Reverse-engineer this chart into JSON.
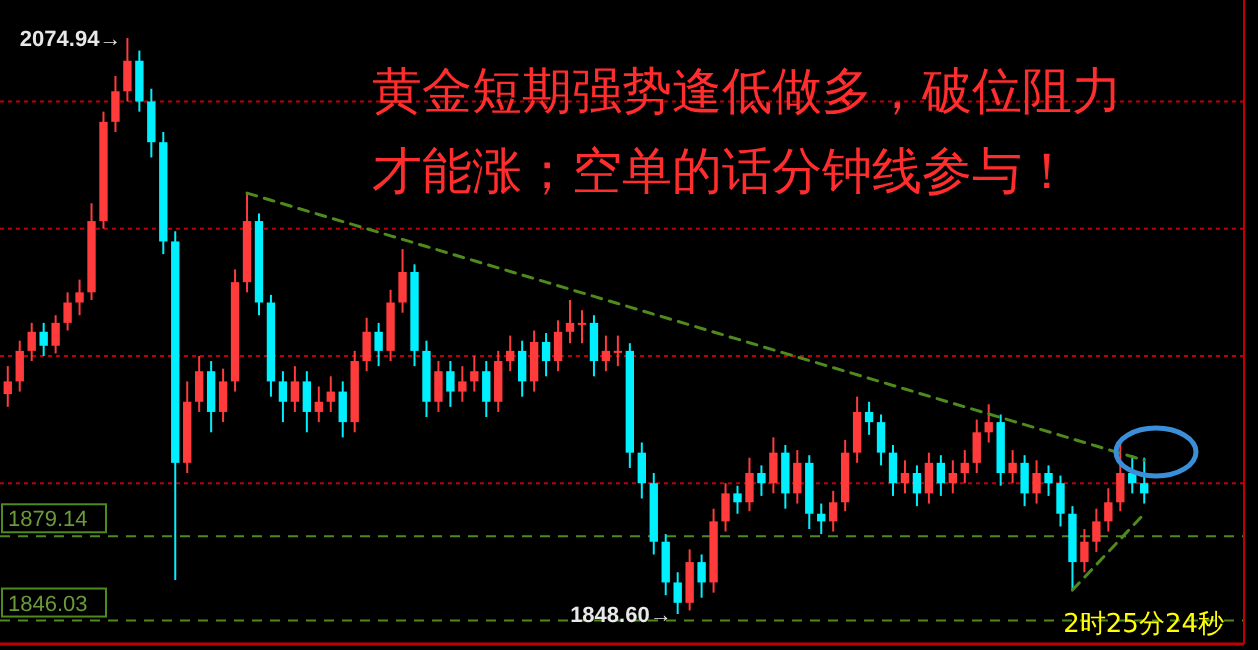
{
  "chart_data": {
    "type": "candlestick",
    "categories": [
      null,
      null,
      null,
      null,
      null,
      null,
      null,
      null,
      null,
      null,
      null,
      null,
      null,
      null,
      null,
      null,
      null,
      null,
      null,
      null,
      null,
      null,
      null,
      null,
      null,
      null,
      null,
      null,
      null,
      null,
      null,
      null,
      null,
      null,
      null,
      null,
      null,
      null,
      null,
      null,
      null,
      null,
      null,
      null,
      null,
      null,
      null,
      null,
      null,
      null,
      null,
      null,
      null,
      null,
      null,
      null,
      null,
      null,
      null,
      null,
      null,
      null,
      null,
      null,
      null,
      null,
      null,
      null,
      null,
      null,
      null,
      null,
      null,
      null,
      null,
      null,
      null,
      null,
      null,
      null,
      null,
      null,
      null,
      null,
      null,
      null,
      null,
      null,
      null,
      null,
      null,
      null,
      null,
      null,
      null,
      null
    ],
    "ohlc": [
      [
        1935,
        1946,
        1930,
        1940
      ],
      [
        1940,
        1956,
        1936,
        1952
      ],
      [
        1952,
        1963,
        1948,
        1959.5
      ],
      [
        1959.5,
        1963,
        1950,
        1954
      ],
      [
        1954,
        1966,
        1951,
        1963
      ],
      [
        1963,
        1975,
        1960,
        1971
      ],
      [
        1971,
        1980,
        1966,
        1975
      ],
      [
        1975,
        2010,
        1972,
        2003
      ],
      [
        2003,
        2046,
        2000,
        2042
      ],
      [
        2042,
        2060,
        2038,
        2054
      ],
      [
        2054,
        2074.94,
        2050,
        2066
      ],
      [
        2066,
        2070,
        2046,
        2050
      ],
      [
        2050,
        2055,
        2028,
        2034
      ],
      [
        2034,
        2038,
        1990,
        1995
      ],
      [
        1995,
        1999,
        1862,
        1908
      ],
      [
        1908,
        1940,
        1904,
        1932
      ],
      [
        1932,
        1950,
        1928,
        1944
      ],
      [
        1944,
        1948,
        1920,
        1928
      ],
      [
        1928,
        1945,
        1924,
        1940
      ],
      [
        1940,
        1984,
        1936,
        1979
      ],
      [
        1979,
        2014,
        1975,
        2003
      ],
      [
        2003,
        2006,
        1966,
        1971
      ],
      [
        1971,
        1974,
        1934,
        1940
      ],
      [
        1940,
        1944,
        1924,
        1932
      ],
      [
        1932,
        1946,
        1928,
        1940
      ],
      [
        1940,
        1944,
        1920,
        1928
      ],
      [
        1928,
        1938,
        1924,
        1932
      ],
      [
        1932,
        1942,
        1928,
        1936
      ],
      [
        1936,
        1940,
        1918,
        1924
      ],
      [
        1924,
        1952,
        1920,
        1948
      ],
      [
        1948,
        1965,
        1944,
        1959.5
      ],
      [
        1959.5,
        1963,
        1946,
        1952
      ],
      [
        1952,
        1976,
        1948,
        1971
      ],
      [
        1971,
        1992,
        1967,
        1983
      ],
      [
        1983,
        1986,
        1946,
        1952
      ],
      [
        1952,
        1956,
        1926,
        1932
      ],
      [
        1932,
        1948,
        1928,
        1944
      ],
      [
        1944,
        1948,
        1930,
        1936
      ],
      [
        1936,
        1946,
        1932,
        1940
      ],
      [
        1940,
        1950,
        1936,
        1944
      ],
      [
        1944,
        1948,
        1926,
        1932
      ],
      [
        1932,
        1952,
        1928,
        1948
      ],
      [
        1948,
        1958,
        1944,
        1952
      ],
      [
        1952,
        1956,
        1934,
        1940
      ],
      [
        1940,
        1960,
        1936,
        1955.5
      ],
      [
        1955.5,
        1959,
        1942,
        1948
      ],
      [
        1948,
        1964,
        1944,
        1959.5
      ],
      [
        1959.5,
        1972,
        1955,
        1963
      ],
      [
        1963,
        1968,
        1955,
        1963
      ],
      [
        1963,
        1966,
        1942,
        1948
      ],
      [
        1948,
        1958,
        1944,
        1952
      ],
      [
        1952,
        1958,
        1946,
        1952
      ],
      [
        1952,
        1955,
        1906,
        1912
      ],
      [
        1912,
        1916,
        1894,
        1900
      ],
      [
        1900,
        1904,
        1872,
        1877
      ],
      [
        1877,
        1880,
        1856,
        1861
      ],
      [
        1861,
        1865,
        1848.6,
        1853
      ],
      [
        1853,
        1874,
        1850,
        1869
      ],
      [
        1869,
        1872,
        1855,
        1861
      ],
      [
        1861,
        1890,
        1857,
        1885
      ],
      [
        1885,
        1900,
        1881,
        1896
      ],
      [
        1896,
        1899,
        1888,
        1892.5
      ],
      [
        1892.5,
        1910,
        1889,
        1904
      ],
      [
        1904,
        1907,
        1895,
        1900
      ],
      [
        1900,
        1918,
        1896,
        1912
      ],
      [
        1912,
        1915,
        1890,
        1896
      ],
      [
        1896,
        1913,
        1892,
        1908
      ],
      [
        1908,
        1911,
        1882,
        1888
      ],
      [
        1888,
        1892,
        1880,
        1885
      ],
      [
        1885,
        1897,
        1881,
        1892.5
      ],
      [
        1892.5,
        1917,
        1889,
        1912
      ],
      [
        1912,
        1934,
        1908,
        1928
      ],
      [
        1928,
        1932,
        1919,
        1924
      ],
      [
        1924,
        1927,
        1907,
        1912
      ],
      [
        1912,
        1915,
        1895,
        1900
      ],
      [
        1900,
        1909,
        1896,
        1904
      ],
      [
        1904,
        1907,
        1891,
        1896
      ],
      [
        1896,
        1912,
        1892,
        1908
      ],
      [
        1908,
        1911,
        1895,
        1900
      ],
      [
        1900,
        1909,
        1896,
        1904
      ],
      [
        1904,
        1913,
        1900,
        1908
      ],
      [
        1908,
        1925,
        1904,
        1920
      ],
      [
        1920,
        1931,
        1916,
        1924
      ],
      [
        1924,
        1927,
        1899,
        1904
      ],
      [
        1904,
        1913,
        1900,
        1908
      ],
      [
        1908,
        1911,
        1891,
        1896
      ],
      [
        1896,
        1909,
        1892,
        1904
      ],
      [
        1904,
        1907,
        1895,
        1900
      ],
      [
        1900,
        1903,
        1883,
        1888
      ],
      [
        1888,
        1891,
        1858,
        1869
      ],
      [
        1869,
        1882,
        1865,
        1877
      ],
      [
        1877,
        1890,
        1873,
        1885
      ],
      [
        1885,
        1898,
        1881,
        1892.5
      ],
      [
        1892.5,
        1916,
        1889,
        1904
      ],
      [
        1904,
        1911,
        1896,
        1900
      ],
      [
        1900,
        1910,
        1892,
        1896
      ]
    ],
    "series": [
      {
        "type": "line",
        "color": "#4f8a1e",
        "line_style": "dashed",
        "values": [
          null,
          null,
          null,
          null,
          null,
          null,
          null,
          null,
          null,
          null,
          null,
          null,
          null,
          null,
          null,
          null,
          null,
          null,
          null,
          null,
          2014,
          2012.6,
          2011.2,
          2009.8,
          2008.4,
          2007,
          2005.6,
          2004.2,
          2002.8,
          2001.4,
          2000,
          1998.6,
          1997.2,
          1995.8,
          1994.4,
          1993,
          1991.6,
          1990.2,
          1988.8,
          1987.4,
          1986,
          1984.6,
          1983.2,
          1981.8,
          1980.4,
          1979,
          1977.6,
          1976.2,
          1974.8,
          1973.4,
          1972,
          1970.6,
          1969.2,
          1967.8,
          1966.4,
          1965,
          1963.6,
          1962.2,
          1960.8,
          1959.4,
          1958,
          1956.6,
          1955.2,
          1953.8,
          1952.4,
          1951,
          1949.6,
          1948.2,
          1946.8,
          1945.4,
          1944,
          1942.6,
          1941.2,
          1939.8,
          1938.4,
          1937,
          1935.6,
          1934.2,
          1932.8,
          1931.4,
          1930,
          1928.6,
          1927.2,
          1925.8,
          1924.4,
          1923,
          1921.6,
          1920.2,
          1918.8,
          1917.4,
          1916,
          1914.6,
          1913.2,
          1911.8,
          1910.4,
          1909
        ]
      },
      {
        "type": "line",
        "color": "#4f8a1e",
        "line_style": "dashed",
        "values": [
          null,
          null,
          null,
          null,
          null,
          null,
          null,
          null,
          null,
          null,
          null,
          null,
          null,
          null,
          null,
          null,
          null,
          null,
          null,
          null,
          null,
          null,
          null,
          null,
          null,
          null,
          null,
          null,
          null,
          null,
          null,
          null,
          null,
          null,
          null,
          null,
          null,
          null,
          null,
          null,
          null,
          null,
          null,
          null,
          null,
          null,
          null,
          null,
          null,
          null,
          null,
          null,
          null,
          null,
          null,
          null,
          null,
          null,
          null,
          null,
          null,
          null,
          null,
          null,
          null,
          null,
          null,
          null,
          null,
          null,
          null,
          null,
          null,
          null,
          null,
          null,
          null,
          null,
          null,
          null,
          null,
          null,
          null,
          null,
          null,
          null,
          null,
          null,
          null,
          1858,
          1863,
          1868,
          1873,
          1878,
          1883,
          1888
        ]
      }
    ],
    "tick_labels": false,
    "ref_lines": [
      {
        "axis": "y",
        "value": 2050,
        "color": "#c00000",
        "line_style": "dotted"
      },
      {
        "axis": "y",
        "value": 2000,
        "color": "#c00000",
        "line_style": "dotted"
      },
      {
        "axis": "y",
        "value": 1950,
        "color": "#c00000",
        "line_style": "dotted"
      },
      {
        "axis": "y",
        "value": 1900,
        "color": "#c00000",
        "line_style": "dotted"
      },
      {
        "axis": "y",
        "value": 1879.14,
        "label": "1879.14",
        "color": "#4f8a1e",
        "line_style": "dashed"
      },
      {
        "axis": "y",
        "value": 1846.03,
        "label": "1846.03",
        "color": "#4f8a1e",
        "line_style": "dashed"
      }
    ],
    "annotations": [
      "黄金短期强势逢低做多，破位阻力才能涨；空单的话分钟线参与！",
      "2074.94→",
      {
        "text": "1848.60→",
        "y": 1848.6
      },
      "2时25分24秒"
    ]
  }
}
